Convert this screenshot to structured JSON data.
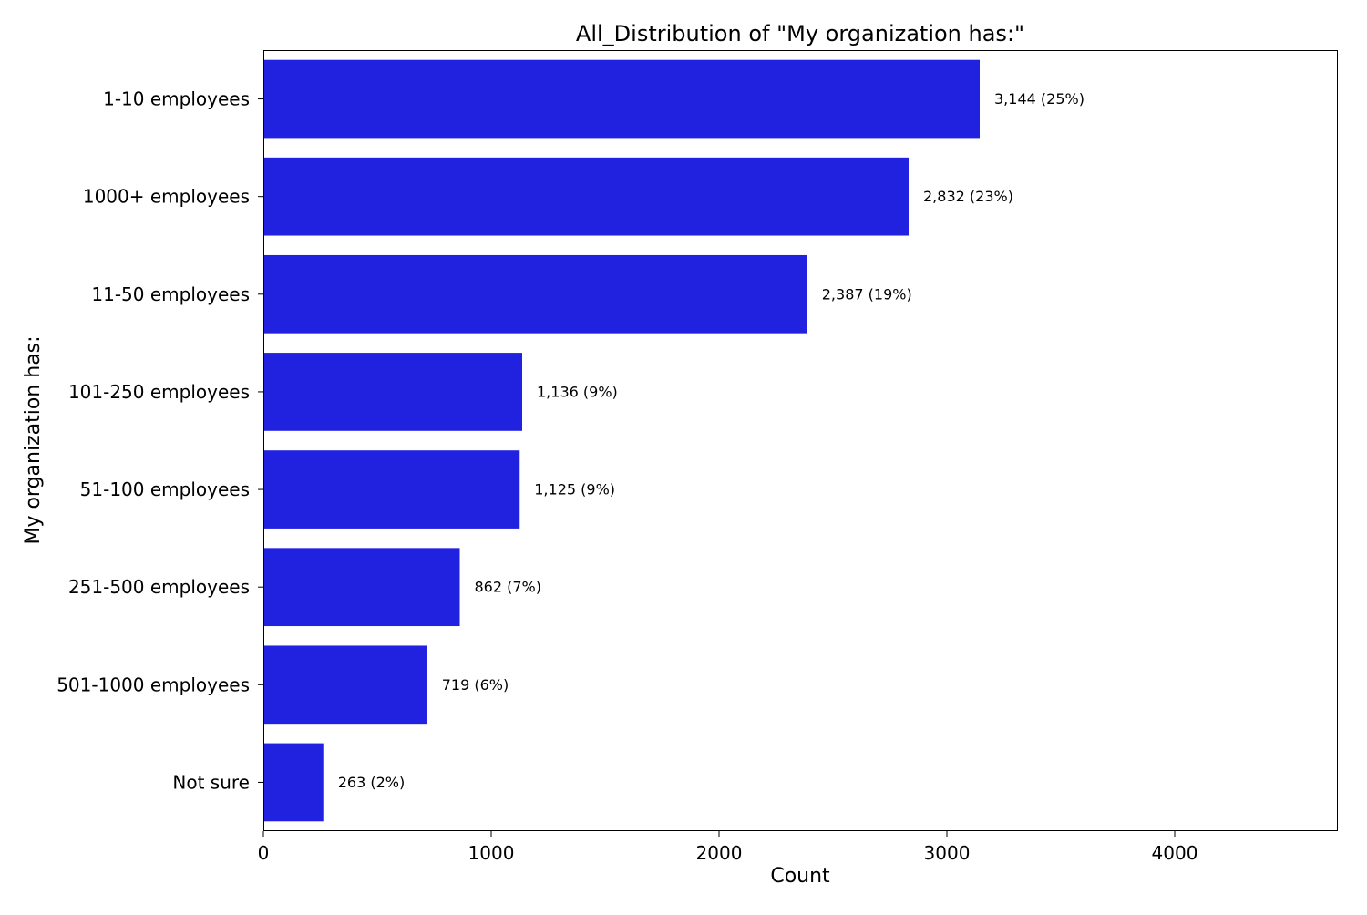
{
  "chart_data": {
    "type": "bar",
    "orientation": "horizontal",
    "title": "All_Distribution of \"My organization has:\"",
    "xlabel": "Count",
    "ylabel": "My organization has:",
    "categories": [
      "1-10 employees",
      "1000+ employees",
      "11-50 employees",
      "101-250 employees",
      "51-100 employees",
      "251-500 employees",
      "501-1000 employees",
      "Not sure"
    ],
    "values": [
      3144,
      2832,
      2387,
      1136,
      1125,
      862,
      719,
      263
    ],
    "data_labels": [
      "3,144 (25%)",
      "2,832 (23%)",
      "2,387 (19%)",
      "1,136 (9%)",
      "1,125 (9%)",
      "862 (7%)",
      "719 (6%)",
      "263 (2%)"
    ],
    "xlim": [
      0,
      4716
    ],
    "xticks": [
      0,
      1000,
      2000,
      3000,
      4000
    ],
    "xtick_labels": [
      "0",
      "1000",
      "2000",
      "3000",
      "4000"
    ],
    "grid": false,
    "bar_color": "#2121E0"
  }
}
